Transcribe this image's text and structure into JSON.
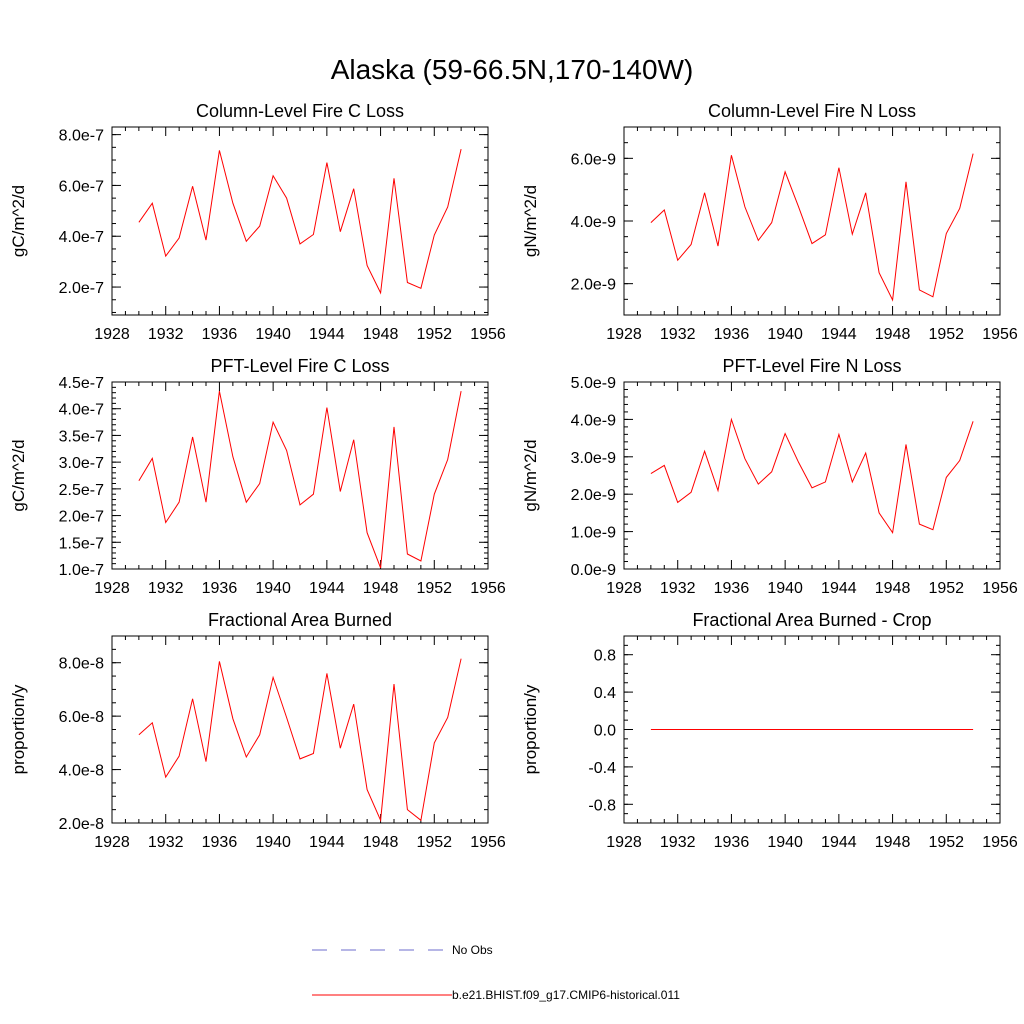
{
  "title": "Alaska (59-66.5N,170-140W)",
  "chart_data": [
    {
      "type": "line",
      "title": "Column-Level Fire C Loss",
      "ylabel": "gC/m^2/d",
      "xlim": [
        1928,
        1956
      ],
      "xticks": [
        "1928",
        "1932",
        "1936",
        "1940",
        "1944",
        "1948",
        "1952",
        "1956"
      ],
      "ylim": [
        9e-08,
        8.3e-07
      ],
      "yticks": [
        {
          "v": 2e-07,
          "label": "2.0e-7"
        },
        {
          "v": 4e-07,
          "label": "4.0e-7"
        },
        {
          "v": 6e-07,
          "label": "6.0e-7"
        },
        {
          "v": 8e-07,
          "label": "8.0e-7"
        }
      ],
      "yminor": 5e-08,
      "x": [
        1930,
        1931,
        1932,
        1933,
        1934,
        1935,
        1936,
        1937,
        1938,
        1939,
        1940,
        1941,
        1942,
        1943,
        1944,
        1945,
        1946,
        1947,
        1948,
        1949,
        1950,
        1951,
        1952,
        1953,
        1954
      ],
      "series": [
        {
          "name": "b.e21.BHIST.f09_g17.CMIP6-historical.011",
          "color": "#ff0000",
          "values": [
            4.55e-07,
            5.3e-07,
            3.22e-07,
            3.93e-07,
            5.97e-07,
            3.85e-07,
            7.38e-07,
            5.3e-07,
            3.8e-07,
            4.4e-07,
            6.38e-07,
            5.5e-07,
            3.7e-07,
            4.07e-07,
            6.9e-07,
            4.18e-07,
            5.87e-07,
            2.85e-07,
            1.77e-07,
            6.28e-07,
            2.18e-07,
            1.95e-07,
            4.05e-07,
            5.15e-07,
            7.43e-07
          ]
        }
      ]
    },
    {
      "type": "line",
      "title": "Column-Level Fire N Loss",
      "ylabel": "gN/m^2/d",
      "xlim": [
        1928,
        1956
      ],
      "xticks": [
        "1928",
        "1932",
        "1936",
        "1940",
        "1944",
        "1948",
        "1952",
        "1956"
      ],
      "ylim": [
        1e-09,
        7e-09
      ],
      "yticks": [
        {
          "v": 2e-09,
          "label": "2.0e-9"
        },
        {
          "v": 4e-09,
          "label": "4.0e-9"
        },
        {
          "v": 6e-09,
          "label": "6.0e-9"
        }
      ],
      "yminor": 5e-10,
      "x": [
        1930,
        1931,
        1932,
        1933,
        1934,
        1935,
        1936,
        1937,
        1938,
        1939,
        1940,
        1941,
        1942,
        1943,
        1944,
        1945,
        1946,
        1947,
        1948,
        1949,
        1950,
        1951,
        1952,
        1953,
        1954
      ],
      "series": [
        {
          "name": "b.e21.BHIST.f09_g17.CMIP6-historical.011",
          "color": "#ff0000",
          "values": [
            3.95e-09,
            4.35e-09,
            2.75e-09,
            3.25e-09,
            4.9e-09,
            3.2e-09,
            6.1e-09,
            4.45e-09,
            3.38e-09,
            3.95e-09,
            5.57e-09,
            4.45e-09,
            3.28e-09,
            3.56e-09,
            5.7e-09,
            3.58e-09,
            4.9e-09,
            2.35e-09,
            1.48e-09,
            5.25e-09,
            1.8e-09,
            1.58e-09,
            3.6e-09,
            4.4e-09,
            6.15e-09
          ]
        }
      ]
    },
    {
      "type": "line",
      "title": "PFT-Level Fire C Loss",
      "ylabel": "gC/m^2/d",
      "xlim": [
        1928,
        1956
      ],
      "xticks": [
        "1928",
        "1932",
        "1936",
        "1940",
        "1944",
        "1948",
        "1952",
        "1956"
      ],
      "ylim": [
        1e-07,
        4.5e-07
      ],
      "yticks": [
        {
          "v": 1e-07,
          "label": "1.0e-7"
        },
        {
          "v": 1.5e-07,
          "label": "1.5e-7"
        },
        {
          "v": 2e-07,
          "label": "2.0e-7"
        },
        {
          "v": 2.5e-07,
          "label": "2.5e-7"
        },
        {
          "v": 3e-07,
          "label": "3.0e-7"
        },
        {
          "v": 3.5e-07,
          "label": "3.5e-7"
        },
        {
          "v": 4e-07,
          "label": "4.0e-7"
        },
        {
          "v": 4.5e-07,
          "label": "4.5e-7"
        }
      ],
      "yminor": 1e-08,
      "x": [
        1930,
        1931,
        1932,
        1933,
        1934,
        1935,
        1936,
        1937,
        1938,
        1939,
        1940,
        1941,
        1942,
        1943,
        1944,
        1945,
        1946,
        1947,
        1948,
        1949,
        1950,
        1951,
        1952,
        1953,
        1954
      ],
      "series": [
        {
          "name": "b.e21.BHIST.f09_g17.CMIP6-historical.011",
          "color": "#ff0000",
          "values": [
            2.65e-07,
            3.07e-07,
            1.87e-07,
            2.25e-07,
            3.47e-07,
            2.25e-07,
            4.33e-07,
            3.1e-07,
            2.25e-07,
            2.6e-07,
            3.75e-07,
            3.22e-07,
            2.2e-07,
            2.4e-07,
            4.02e-07,
            2.45e-07,
            3.42e-07,
            1.68e-07,
            1.02e-07,
            3.66e-07,
            1.28e-07,
            1.15e-07,
            2.4e-07,
            3.05e-07,
            4.33e-07
          ]
        }
      ]
    },
    {
      "type": "line",
      "title": "PFT-Level Fire N Loss",
      "ylabel": "gN/m^2/d",
      "xlim": [
        1928,
        1956
      ],
      "xticks": [
        "1928",
        "1932",
        "1936",
        "1940",
        "1944",
        "1948",
        "1952",
        "1956"
      ],
      "ylim": [
        0.0,
        5e-09
      ],
      "yticks": [
        {
          "v": 0.0,
          "label": "0.0e-9"
        },
        {
          "v": 1e-09,
          "label": "1.0e-9"
        },
        {
          "v": 2e-09,
          "label": "2.0e-9"
        },
        {
          "v": 3e-09,
          "label": "3.0e-9"
        },
        {
          "v": 4e-09,
          "label": "4.0e-9"
        },
        {
          "v": 5e-09,
          "label": "5.0e-9"
        }
      ],
      "yminor": 2e-10,
      "x": [
        1930,
        1931,
        1932,
        1933,
        1934,
        1935,
        1936,
        1937,
        1938,
        1939,
        1940,
        1941,
        1942,
        1943,
        1944,
        1945,
        1946,
        1947,
        1948,
        1949,
        1950,
        1951,
        1952,
        1953,
        1954
      ],
      "series": [
        {
          "name": "b.e21.BHIST.f09_g17.CMIP6-historical.011",
          "color": "#ff0000",
          "values": [
            2.55e-09,
            2.77e-09,
            1.78e-09,
            2.05e-09,
            3.15e-09,
            2.1e-09,
            4e-09,
            2.95e-09,
            2.27e-09,
            2.6e-09,
            3.62e-09,
            2.85e-09,
            2.17e-09,
            2.33e-09,
            3.6e-09,
            2.33e-09,
            3.1e-09,
            1.5e-09,
            9.7e-10,
            3.33e-09,
            1.2e-09,
            1.05e-09,
            2.45e-09,
            2.9e-09,
            3.95e-09
          ]
        }
      ]
    },
    {
      "type": "line",
      "title": "Fractional Area Burned",
      "ylabel": "proportion/y",
      "xlim": [
        1928,
        1956
      ],
      "xticks": [
        "1928",
        "1932",
        "1936",
        "1940",
        "1944",
        "1948",
        "1952",
        "1956"
      ],
      "ylim": [
        2e-08,
        9e-08
      ],
      "yticks": [
        {
          "v": 2e-08,
          "label": "2.0e-8"
        },
        {
          "v": 4e-08,
          "label": "4.0e-8"
        },
        {
          "v": 6e-08,
          "label": "6.0e-8"
        },
        {
          "v": 8e-08,
          "label": "8.0e-8"
        }
      ],
      "yminor": 5e-09,
      "x": [
        1930,
        1931,
        1932,
        1933,
        1934,
        1935,
        1936,
        1937,
        1938,
        1939,
        1940,
        1941,
        1942,
        1943,
        1944,
        1945,
        1946,
        1947,
        1948,
        1949,
        1950,
        1951,
        1952,
        1953,
        1954
      ],
      "series": [
        {
          "name": "b.e21.BHIST.f09_g17.CMIP6-historical.011",
          "color": "#ff0000",
          "values": [
            5.3e-08,
            5.75e-08,
            3.72e-08,
            4.5e-08,
            6.65e-08,
            4.3e-08,
            8.05e-08,
            5.9e-08,
            4.47e-08,
            5.3e-08,
            7.45e-08,
            5.95e-08,
            4.4e-08,
            4.6e-08,
            7.6e-08,
            4.8e-08,
            6.45e-08,
            3.25e-08,
            2.1e-08,
            7.2e-08,
            2.5e-08,
            2.1e-08,
            5e-08,
            5.95e-08,
            8.15e-08
          ]
        }
      ]
    },
    {
      "type": "line",
      "title": "Fractional Area Burned - Crop",
      "ylabel": "proportion/y",
      "xlim": [
        1928,
        1956
      ],
      "xticks": [
        "1928",
        "1932",
        "1936",
        "1940",
        "1944",
        "1948",
        "1952",
        "1956"
      ],
      "ylim": [
        -1.0,
        1.0
      ],
      "yticks": [
        {
          "v": -0.8,
          "label": "-0.8"
        },
        {
          "v": -0.4,
          "label": "-0.4"
        },
        {
          "v": 0.0,
          "label": "0.0"
        },
        {
          "v": 0.4,
          "label": "0.4"
        },
        {
          "v": 0.8,
          "label": "0.8"
        }
      ],
      "yminor": 0.1,
      "x": [
        1930,
        1931,
        1932,
        1933,
        1934,
        1935,
        1936,
        1937,
        1938,
        1939,
        1940,
        1941,
        1942,
        1943,
        1944,
        1945,
        1946,
        1947,
        1948,
        1949,
        1950,
        1951,
        1952,
        1953,
        1954
      ],
      "series": [
        {
          "name": "b.e21.BHIST.f09_g17.CMIP6-historical.011",
          "color": "#ff0000",
          "values": [
            0,
            0,
            0,
            0,
            0,
            0,
            0,
            0,
            0,
            0,
            0,
            0,
            0,
            0,
            0,
            0,
            0,
            0,
            0,
            0,
            0,
            0,
            0,
            0,
            0
          ]
        }
      ]
    }
  ],
  "legend": [
    {
      "label": "No Obs",
      "color": "#6d6dcc",
      "style": "dashed"
    },
    {
      "label": "b.e21.BHIST.f09_g17.CMIP6-historical.011",
      "color": "#ff0000",
      "style": "solid"
    }
  ]
}
